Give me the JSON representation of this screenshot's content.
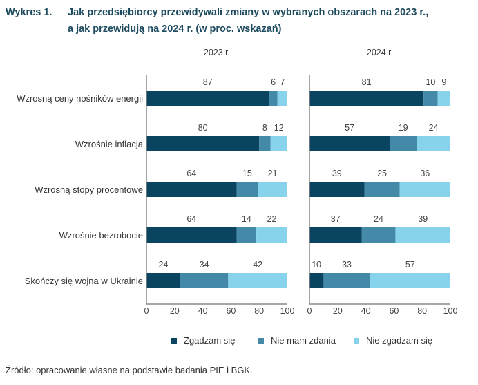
{
  "figure_label": "Wykres 1.",
  "title_line1": "Jak przedsiębiorcy przewidywali zmiany w wybranych obszarach na 2023 r.,",
  "title_line2": "a jak przewidują na 2024 r. (w proc. wskazań)",
  "source": "Źródło: opracowanie własne na podstawie badania PIE i BGK.",
  "chart_data": {
    "type": "bar",
    "stacked": true,
    "orientation": "horizontal",
    "categories": [
      "Wzrosną ceny nośników energii",
      "Wzrośnie inflacja",
      "Wzrosną stopy procentowe",
      "Wzrośnie bezrobocie",
      "Skończy się wojna w Ukrainie"
    ],
    "xlim": [
      0,
      100
    ],
    "xticks": [
      "0",
      "20",
      "40",
      "60",
      "80",
      "100"
    ],
    "legend_position": "bottom",
    "series_names": [
      "Zgadzam się",
      "Nie mam zdania",
      "Nie zgadzam się"
    ],
    "colors": [
      "#0b4460",
      "#4589a8",
      "#87d3ec"
    ],
    "panels": [
      {
        "title": "2023 r.",
        "series": [
          {
            "name": "Zgadzam się",
            "values": [
              87,
              80,
              64,
              64,
              24
            ]
          },
          {
            "name": "Nie mam zdania",
            "values": [
              6,
              8,
              15,
              14,
              34
            ]
          },
          {
            "name": "Nie zgadzam się",
            "values": [
              7,
              12,
              21,
              22,
              42
            ]
          }
        ]
      },
      {
        "title": "2024 r.",
        "series": [
          {
            "name": "Zgadzam się",
            "values": [
              81,
              57,
              39,
              37,
              10
            ]
          },
          {
            "name": "Nie mam zdania",
            "values": [
              10,
              19,
              25,
              24,
              33
            ]
          },
          {
            "name": "Nie zgadzam się",
            "values": [
              9,
              24,
              36,
              39,
              57
            ]
          }
        ]
      }
    ]
  }
}
